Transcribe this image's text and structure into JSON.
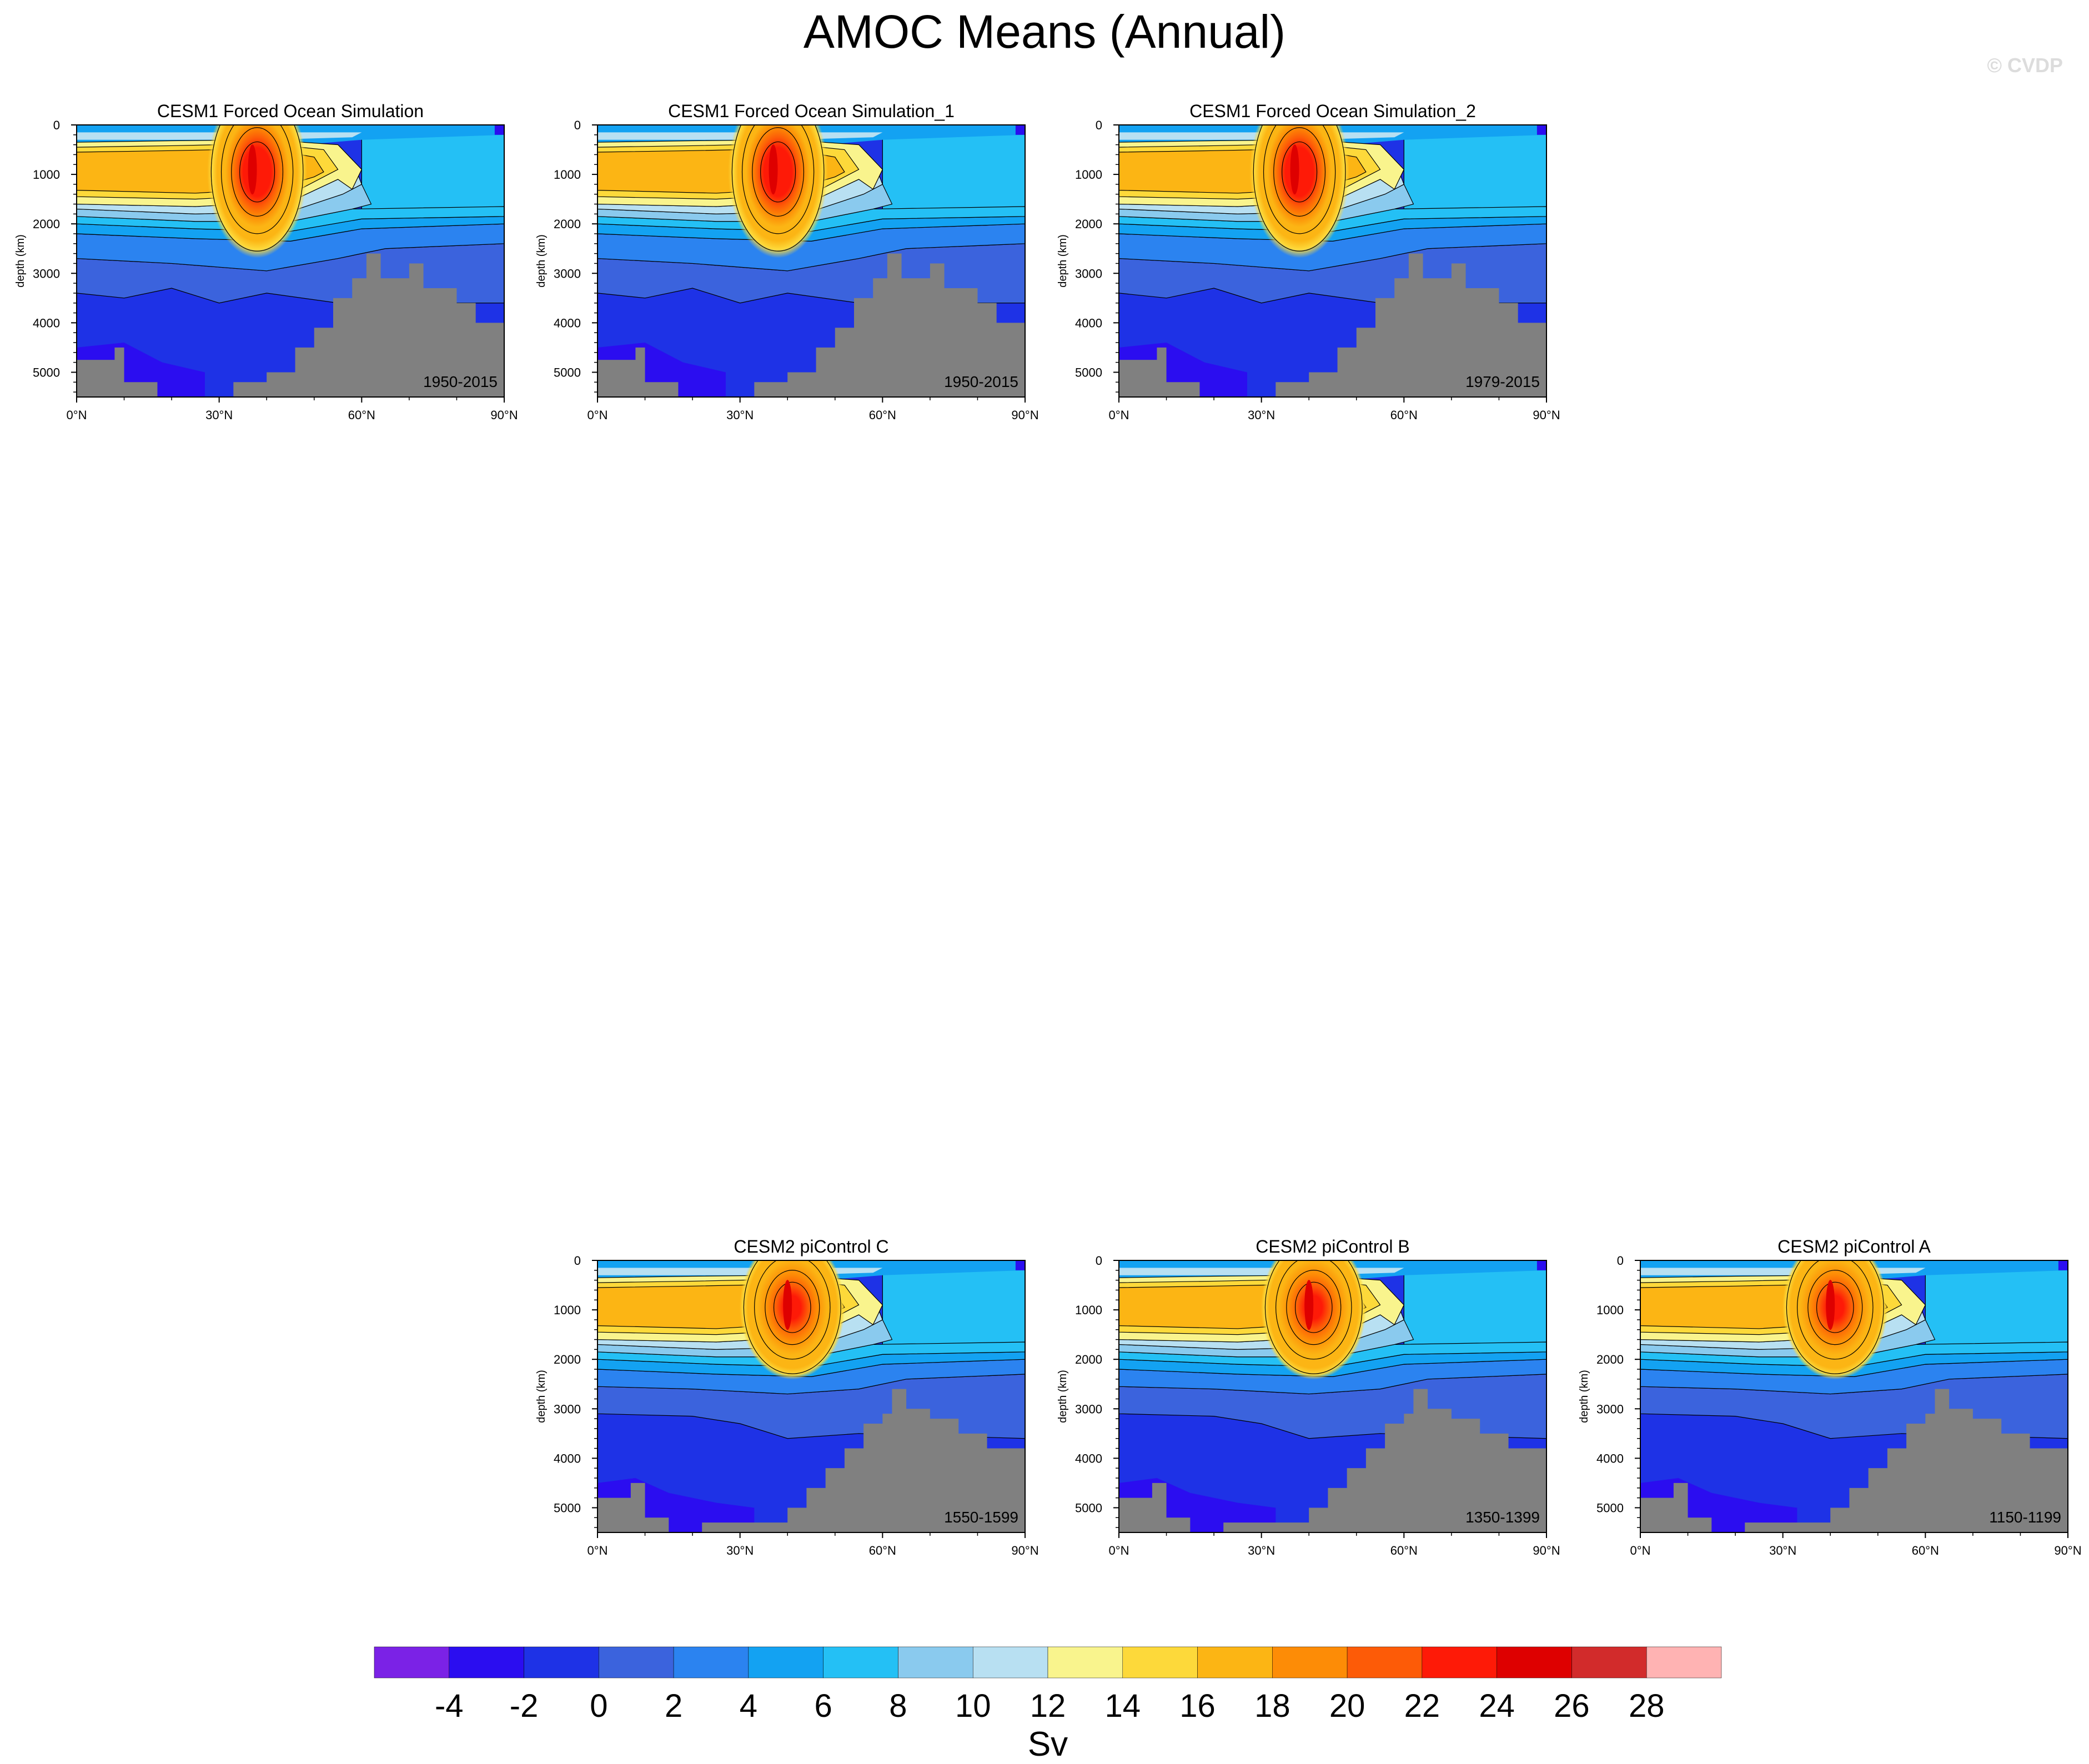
{
  "page": {
    "title": "AMOC Means (Annual)",
    "watermark": "© CVDP"
  },
  "chart_data": [
    {
      "type": "heatmap",
      "title": "CESM1 Forced Ocean Simulation",
      "period": "1950-2015",
      "ylabel": "depth (km)",
      "ylim": [
        5500,
        0
      ],
      "xlim": [
        0,
        90
      ],
      "xticks": [
        "0°N",
        "30°N",
        "60°N",
        "90°N"
      ],
      "yticks": [
        "0",
        "1000",
        "2000",
        "3000",
        "4000",
        "5000"
      ],
      "max_overturning": {
        "lat": 38,
        "depth": 950,
        "value": 25
      },
      "variant": "cesm1"
    },
    {
      "type": "heatmap",
      "title": "CESM1 Forced Ocean Simulation_1",
      "period": "1950-2015",
      "ylabel": "depth (km)",
      "ylim": [
        5500,
        0
      ],
      "xlim": [
        0,
        90
      ],
      "xticks": [
        "0°N",
        "30°N",
        "60°N",
        "90°N"
      ],
      "yticks": [
        "0",
        "1000",
        "2000",
        "3000",
        "4000",
        "5000"
      ],
      "max_overturning": {
        "lat": 38,
        "depth": 950,
        "value": 25
      },
      "variant": "cesm1"
    },
    {
      "type": "heatmap",
      "title": "CESM1 Forced Ocean Simulation_2",
      "period": "1979-2015",
      "ylabel": "depth (km)",
      "ylim": [
        5500,
        0
      ],
      "xlim": [
        0,
        90
      ],
      "xticks": [
        "0°N",
        "30°N",
        "60°N",
        "90°N"
      ],
      "yticks": [
        "0",
        "1000",
        "2000",
        "3000",
        "4000",
        "5000"
      ],
      "max_overturning": {
        "lat": 38,
        "depth": 950,
        "value": 25
      },
      "variant": "cesm1"
    },
    {
      "type": "heatmap",
      "title": "CESM2 piControl C",
      "period": "1550-1599",
      "ylabel": "depth (km)",
      "ylim": [
        5500,
        0
      ],
      "xlim": [
        0,
        90
      ],
      "xticks": [
        "0°N",
        "30°N",
        "60°N",
        "90°N"
      ],
      "yticks": [
        "0",
        "1000",
        "2000",
        "3000",
        "4000",
        "5000"
      ],
      "max_overturning": {
        "lat": 41,
        "depth": 950,
        "value": 24
      },
      "variant": "cesm2"
    },
    {
      "type": "heatmap",
      "title": "CESM2 piControl B",
      "period": "1350-1399",
      "ylabel": "depth (km)",
      "ylim": [
        5500,
        0
      ],
      "xlim": [
        0,
        90
      ],
      "xticks": [
        "0°N",
        "30°N",
        "60°N",
        "90°N"
      ],
      "yticks": [
        "0",
        "1000",
        "2000",
        "3000",
        "4000",
        "5000"
      ],
      "max_overturning": {
        "lat": 41,
        "depth": 950,
        "value": 24
      },
      "variant": "cesm2"
    },
    {
      "type": "heatmap",
      "title": "CESM2 piControl A",
      "period": "1150-1199",
      "ylabel": "depth (km)",
      "ylim": [
        5500,
        0
      ],
      "xlim": [
        0,
        90
      ],
      "xticks": [
        "0°N",
        "30°N",
        "60°N",
        "90°N"
      ],
      "yticks": [
        "0",
        "1000",
        "2000",
        "3000",
        "4000",
        "5000"
      ],
      "max_overturning": {
        "lat": 41,
        "depth": 950,
        "value": 23
      },
      "variant": "cesm2"
    }
  ],
  "colorbar": {
    "label": "Sv",
    "ticks": [
      "-4",
      "-2",
      "0",
      "2",
      "4",
      "6",
      "8",
      "10",
      "12",
      "14",
      "16",
      "18",
      "20",
      "22",
      "24",
      "26",
      "28"
    ],
    "colors": [
      "#7b22e6",
      "#2b0df0",
      "#1e32e6",
      "#3b63dd",
      "#2b83f0",
      "#13a2f2",
      "#24c0f5",
      "#8acaee",
      "#b8e0f2",
      "#f9f48d",
      "#fdd93a",
      "#fcb514",
      "#fd8c06",
      "#fd5b07",
      "#fe1a07",
      "#de0000",
      "#d22b2b",
      "#ffb3b3"
    ]
  },
  "colors": {
    "land": "#808080",
    "contour_line": "#000000"
  }
}
